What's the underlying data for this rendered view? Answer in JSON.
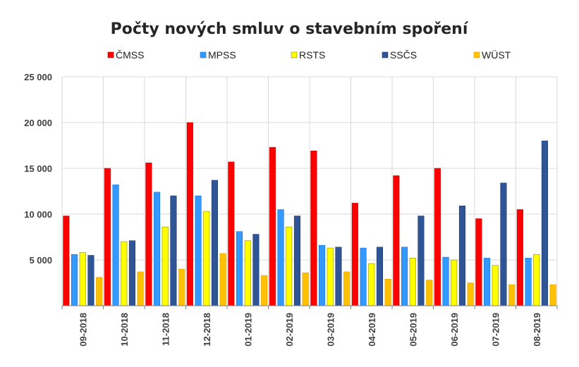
{
  "chart_data": {
    "type": "bar",
    "title": "Počty nových smluv o stavebním spoření",
    "xlabel": "",
    "ylabel": "",
    "ylim": [
      0,
      25000
    ],
    "yticks": [
      5000,
      10000,
      15000,
      20000,
      25000
    ],
    "ytick_labels": [
      "5 000",
      "10 000",
      "15 000",
      "20 000",
      "25 000"
    ],
    "grid": "vertical-and-horizontal",
    "legend_position": "top",
    "categories": [
      "09-2018",
      "10-2018",
      "11-2018",
      "12-2018",
      "01-2019",
      "02-2019",
      "03-2019",
      "04-2019",
      "05-2019",
      "06-2019",
      "07-2019",
      "08-2019"
    ],
    "series": [
      {
        "name": "ČMSS",
        "color": "#ff0000",
        "stroke": "#c00000",
        "values": [
          9800,
          15000,
          15600,
          20000,
          15700,
          17300,
          16900,
          11200,
          14200,
          15000,
          9500,
          10500
        ]
      },
      {
        "name": "MPSS",
        "color": "#3399ff",
        "stroke": "#1f6fd1",
        "values": [
          5600,
          13200,
          12400,
          12000,
          8100,
          10500,
          6600,
          6300,
          6400,
          5300,
          5200,
          5200
        ]
      },
      {
        "name": "RSTS",
        "color": "#ffff00",
        "stroke": "#8c8c00",
        "values": [
          5800,
          7000,
          8600,
          10300,
          7100,
          8600,
          6300,
          4600,
          5200,
          5000,
          4400,
          5600
        ]
      },
      {
        "name": "SSČS",
        "color": "#2f5597",
        "stroke": "#1f3a66",
        "values": [
          5500,
          7100,
          12000,
          13700,
          7800,
          9800,
          6400,
          6400,
          9800,
          10900,
          13400,
          18000
        ]
      },
      {
        "name": "WÜST",
        "color": "#ffc000",
        "stroke": "#d9a300",
        "values": [
          3100,
          3700,
          4000,
          5700,
          3300,
          3600,
          3700,
          2900,
          2800,
          2500,
          2300,
          2300
        ]
      }
    ]
  }
}
